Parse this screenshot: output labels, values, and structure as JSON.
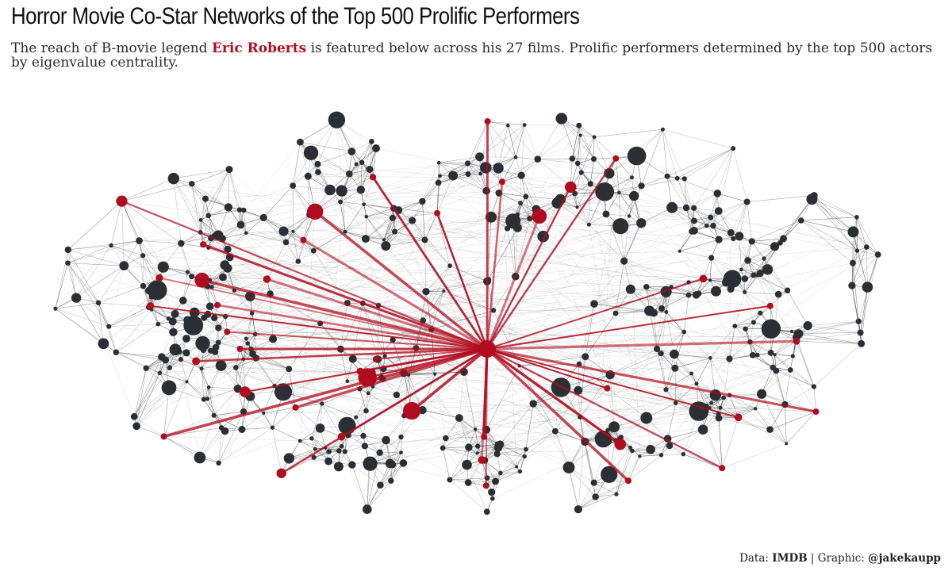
{
  "header": {
    "title": "Horror Movie Co-Star Networks of the Top 500 Prolific Performers",
    "subtitle_before": "The reach of B-movie legend ",
    "subtitle_highlight": "Eric Roberts",
    "subtitle_after": " is featured below across his 27 films. Prolific performers determined by the top 500 actors by eigenvalue centrality."
  },
  "caption": {
    "data_label": "Data: ",
    "data_source": "IMDB",
    "separator": " | Graphic: ",
    "author": "@jakekaupp"
  },
  "colors": {
    "node": "#2b2f33",
    "edge": "#3a3a3a",
    "highlight": "#b00b1e",
    "title": "#111111"
  },
  "network": {
    "node_count": 500,
    "highlight_actor": "Eric Roberts",
    "highlight_films": 27
  }
}
